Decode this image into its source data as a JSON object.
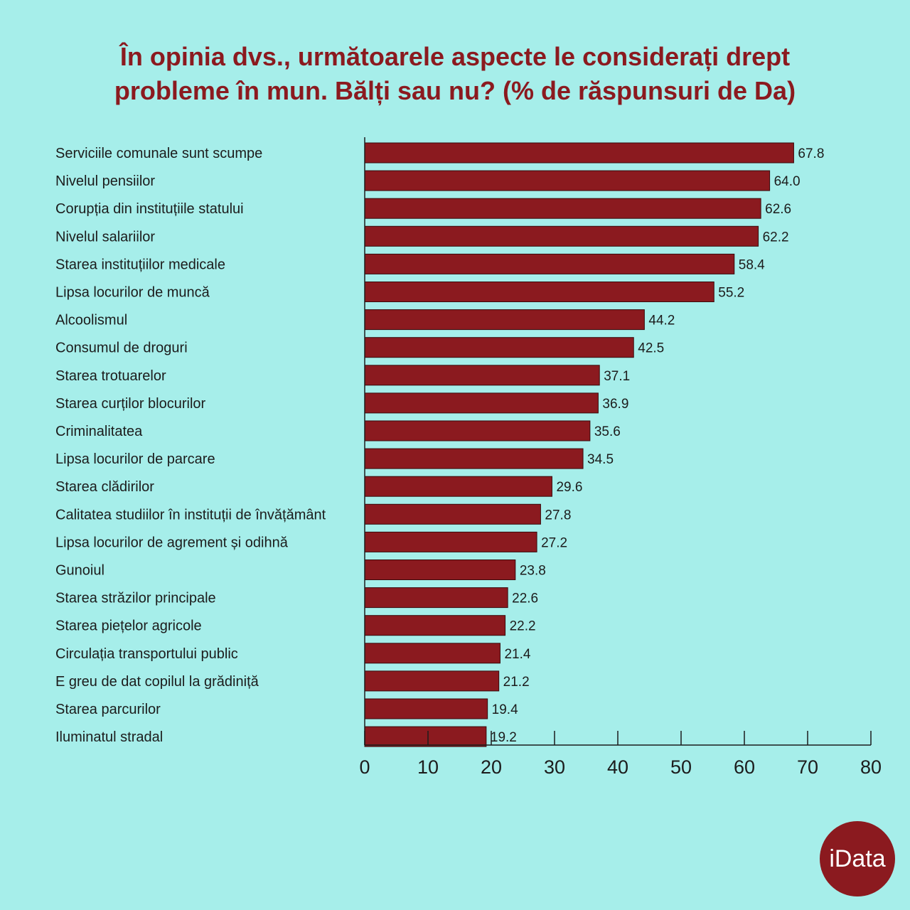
{
  "chart_data": {
    "type": "bar",
    "orientation": "horizontal",
    "title_lines": [
      "În opinia dvs., următoarele aspecte le considerați drept",
      "probleme în mun. Bălți sau nu? (% de răspunsuri de Da)"
    ],
    "categories": [
      "Serviciile comunale sunt scumpe",
      "Nivelul pensiilor",
      "Corupția din instituțiile statului",
      "Nivelul salariilor",
      "Starea instituțiilor medicale",
      "Lipsa locurilor de muncă",
      "Alcoolismul",
      "Consumul de droguri",
      "Starea trotuarelor",
      "Starea curților blocurilor",
      "Criminalitatea",
      "Lipsa locurilor de parcare",
      "Starea clădirilor",
      "Calitatea studiilor în instituții de învățământ",
      "Lipsa locurilor de agrement și odihnă",
      "Gunoiul",
      "Starea străzilor principale",
      "Starea piețelor agricole",
      "Circulația transportului public",
      "E greu de dat copilul la grădiniță",
      "Starea parcurilor",
      "Iluminatul stradal"
    ],
    "values": [
      67.8,
      64.0,
      62.6,
      62.2,
      58.4,
      55.2,
      44.2,
      42.5,
      37.1,
      36.9,
      35.6,
      34.5,
      29.6,
      27.8,
      27.2,
      23.8,
      22.6,
      22.2,
      21.4,
      21.2,
      19.4,
      19.2
    ],
    "value_labels": [
      "67.8",
      "64.0",
      "62.6",
      "62.2",
      "58.4",
      "55.2",
      "44.2",
      "42.5",
      "37.1",
      "36.9",
      "35.6",
      "34.5",
      "29.6",
      "27.8",
      "27.2",
      "23.8",
      "22.6",
      "22.2",
      "21.4",
      "21.2",
      "19.4",
      "19.2"
    ],
    "xlim": [
      0,
      80
    ],
    "xticks": [
      0,
      10,
      20,
      30,
      40,
      50,
      60,
      70,
      80
    ],
    "grid": false,
    "colors": {
      "bar": "#8b1a1f",
      "background": "#a6eeea",
      "title": "#8b1a1f"
    }
  },
  "logo": {
    "text": "iData"
  }
}
